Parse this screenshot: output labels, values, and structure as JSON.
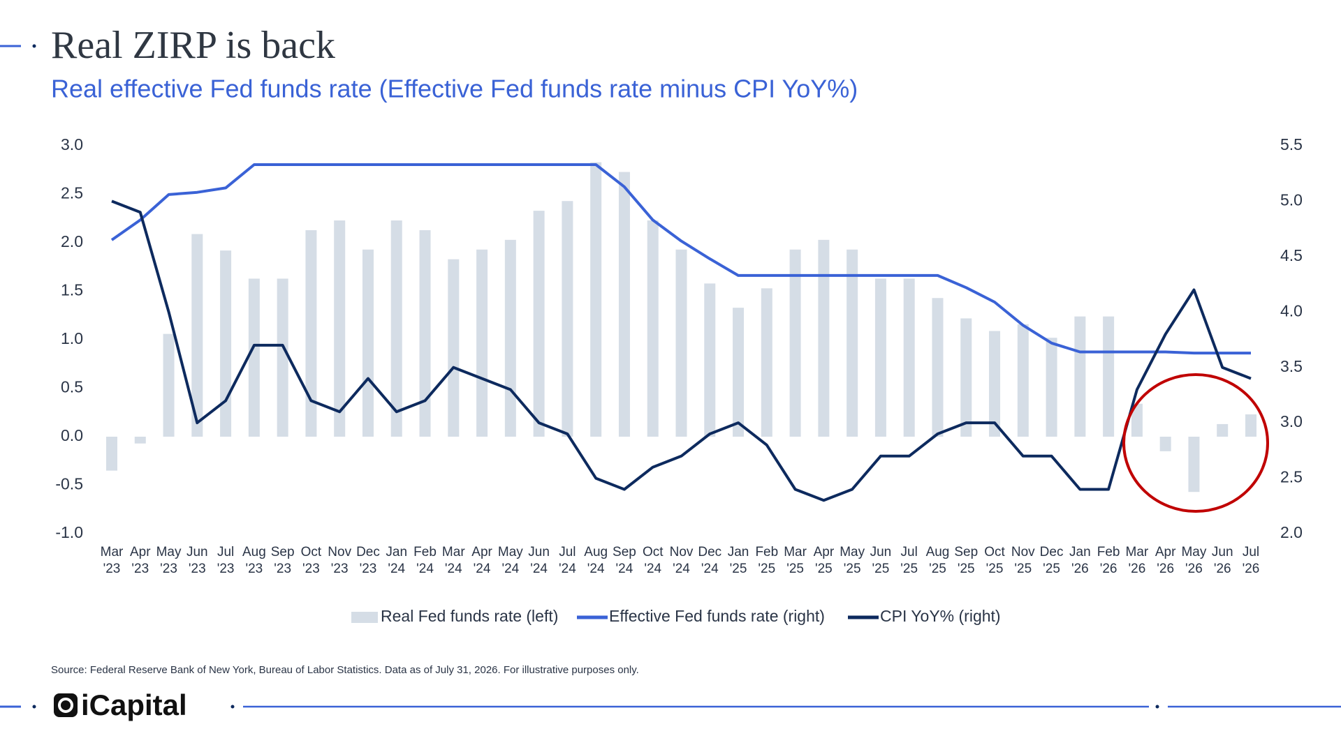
{
  "chart_data": {
    "type": "combo",
    "title": "Real ZIRP is back",
    "subtitle": "Real effective Fed funds rate (Effective Fed funds rate minus CPI YoY%)",
    "source": "Source: Federal Reserve Bank of New York, Bureau of Labor Statistics. Data as of July 31, 2026. For illustrative purposes only.",
    "categories": [
      "Mar '23",
      "Apr '23",
      "May '23",
      "Jun '23",
      "Jul '23",
      "Aug '23",
      "Sep '23",
      "Oct '23",
      "Nov '23",
      "Dec '23",
      "Jan '24",
      "Feb '24",
      "Mar '24",
      "Apr '24",
      "May '24",
      "Jun '24",
      "Jul '24",
      "Aug '24",
      "Sep '24",
      "Oct '24",
      "Nov '24",
      "Dec '24",
      "Jan '25",
      "Feb '25",
      "Mar '25",
      "Apr '25",
      "May '25",
      "Jun '25",
      "Jul '25",
      "Aug '25",
      "Sep '25",
      "Oct '25",
      "Nov '25",
      "Dec '25",
      "Jan '26",
      "Feb '26",
      "Mar '26",
      "Apr '26",
      "May '26",
      "Jun '26",
      "Jul '26"
    ],
    "series": [
      {
        "name": "Real Fed funds rate (left)",
        "type": "bar",
        "axis": "y",
        "color": "#d5dde6",
        "values": [
          -0.35,
          -0.07,
          1.06,
          2.09,
          1.92,
          1.63,
          1.63,
          2.13,
          2.23,
          1.93,
          2.23,
          2.13,
          1.83,
          1.93,
          2.03,
          2.33,
          2.43,
          2.83,
          2.73,
          2.23,
          1.93,
          1.58,
          1.33,
          1.53,
          1.93,
          2.03,
          1.93,
          1.63,
          1.63,
          1.43,
          1.22,
          1.09,
          1.16,
          1.02,
          1.24,
          1.24,
          0.34,
          -0.15,
          -0.57,
          0.13,
          0.23
        ]
      },
      {
        "name": "Effective Fed funds rate (right)",
        "type": "line",
        "axis": "y2",
        "color": "#3a62d6",
        "values": [
          4.65,
          4.83,
          5.06,
          5.08,
          5.12,
          5.33,
          5.33,
          5.33,
          5.33,
          5.33,
          5.33,
          5.33,
          5.33,
          5.33,
          5.33,
          5.33,
          5.33,
          5.33,
          5.13,
          4.83,
          4.64,
          4.48,
          4.33,
          4.33,
          4.33,
          4.33,
          4.33,
          4.33,
          4.33,
          4.33,
          4.22,
          4.09,
          3.88,
          3.72,
          3.64,
          3.64,
          3.64,
          3.64,
          3.63,
          3.63,
          3.63
        ]
      },
      {
        "name": "CPI YoY% (right)",
        "type": "line",
        "axis": "y2",
        "color": "#0d2a5e",
        "values": [
          5.0,
          4.9,
          4.0,
          3.0,
          3.2,
          3.7,
          3.7,
          3.2,
          3.1,
          3.4,
          3.1,
          3.2,
          3.5,
          3.4,
          3.3,
          3.0,
          2.9,
          2.5,
          2.4,
          2.6,
          2.7,
          2.9,
          3.0,
          2.8,
          2.4,
          2.3,
          2.4,
          2.7,
          2.7,
          2.9,
          3.0,
          3.0,
          2.7,
          2.7,
          2.4,
          2.4,
          3.3,
          3.8,
          4.2,
          3.5,
          3.4
        ]
      }
    ],
    "ylim": [
      -1,
      3
    ],
    "yticks": [
      {
        "value": -1,
        "label": "-1.0"
      },
      {
        "value": -0.5,
        "label": "-0.5"
      },
      {
        "value": 0,
        "label": "0.0"
      },
      {
        "value": 0.5,
        "label": "0.5"
      },
      {
        "value": 1,
        "label": "1.0"
      },
      {
        "value": 1.5,
        "label": "1.5"
      },
      {
        "value": 2,
        "label": "2.0"
      },
      {
        "value": 2.5,
        "label": "2.5"
      },
      {
        "value": 3,
        "label": "3.0"
      }
    ],
    "y2lim": [
      2,
      5.5
    ],
    "y2ticks": [
      {
        "value": 2,
        "label": "2.0"
      },
      {
        "value": 2.5,
        "label": "2.5"
      },
      {
        "value": 3,
        "label": "3.0"
      },
      {
        "value": 3.5,
        "label": "3.5"
      },
      {
        "value": 4,
        "label": "4.0"
      },
      {
        "value": 4.5,
        "label": "4.5"
      },
      {
        "value": 5,
        "label": "5.0"
      },
      {
        "value": 5.5,
        "label": "5.5"
      }
    ],
    "grid": false,
    "legend": "bottom"
  },
  "brand": "iCapital"
}
